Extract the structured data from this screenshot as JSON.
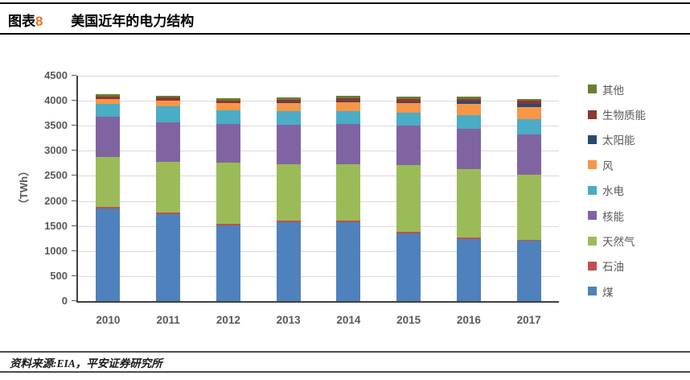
{
  "header": {
    "figure_label": "图表",
    "figure_number": "8",
    "figure_title": "美国近年的电力结构"
  },
  "footer": {
    "source": "资料来源:EIA，平安证券研究所"
  },
  "colors": {
    "figure_number_accent": "#E87722",
    "axis_text": "#595959",
    "axis_line": "#404040",
    "gridline": "#D9D9D9"
  },
  "chart_data": {
    "type": "bar",
    "stacked": true,
    "title": "美国近年的电力结构",
    "ylabel": "（TWh）",
    "ylim": [
      0,
      4500
    ],
    "ytick_step": 500,
    "yticks": [
      0,
      500,
      1000,
      1500,
      2000,
      2500,
      3000,
      3500,
      4000,
      4500
    ],
    "grid": true,
    "legend_position": "right",
    "categories": [
      "2010",
      "2011",
      "2012",
      "2013",
      "2014",
      "2015",
      "2016",
      "2017"
    ],
    "series": [
      {
        "name": "煤",
        "color": "#4F81BD",
        "values": [
          1847,
          1733,
          1514,
          1581,
          1582,
          1352,
          1239,
          1206
        ]
      },
      {
        "name": "石油",
        "color": "#C0504D",
        "values": [
          37,
          30,
          23,
          27,
          30,
          28,
          24,
          21
        ]
      },
      {
        "name": "天然气",
        "color": "#9BBB59",
        "values": [
          988,
          1013,
          1225,
          1124,
          1126,
          1333,
          1378,
          1296
        ]
      },
      {
        "name": "核能",
        "color": "#8064A2",
        "values": [
          807,
          790,
          769,
          789,
          797,
          797,
          806,
          805
        ]
      },
      {
        "name": "水电",
        "color": "#4BACC6",
        "values": [
          260,
          319,
          276,
          269,
          259,
          249,
          268,
          300
        ]
      },
      {
        "name": "风",
        "color": "#F79646",
        "values": [
          95,
          120,
          141,
          168,
          182,
          191,
          227,
          254
        ]
      },
      {
        "name": "太阳能",
        "color": "#2A4A73",
        "values": [
          1,
          2,
          4,
          9,
          18,
          25,
          37,
          53
        ]
      },
      {
        "name": "生物质能",
        "color": "#8C3733",
        "values": [
          56,
          57,
          58,
          60,
          64,
          64,
          63,
          63
        ]
      },
      {
        "name": "其他",
        "color": "#697E32",
        "values": [
          34,
          36,
          37,
          39,
          36,
          38,
          37,
          39
        ]
      }
    ],
    "legend": [
      "其他",
      "生物质能",
      "太阳能",
      "风",
      "水电",
      "核能",
      "天然气",
      "石油",
      "煤"
    ]
  }
}
